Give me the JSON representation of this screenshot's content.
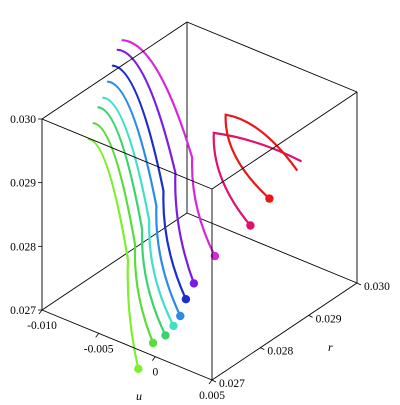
{
  "chart_data": {
    "type": "line",
    "subtype": "3d-wireframe-box",
    "axes": {
      "x": {
        "label": "u",
        "ticks": [
          "-0.010",
          "-0.005",
          "0",
          "0.005"
        ],
        "range": [
          -0.01,
          0.005
        ]
      },
      "y": {
        "label": "r",
        "ticks": [
          "0.027",
          "0.028",
          "0.029",
          "0.030"
        ],
        "range": [
          0.027,
          0.03
        ]
      },
      "z": {
        "label": "",
        "ticks": [
          "0.027",
          "0.028",
          "0.029",
          "0.030"
        ],
        "range": [
          0.027,
          0.03
        ]
      }
    },
    "grid": false,
    "legend": "none",
    "series": [
      {
        "color": "#7cf02a",
        "marker": [
          -0.0015,
          0.027,
          0.0267
        ],
        "top": [
          0.001,
          0.0262,
          0.029
        ],
        "tail_end": [
          -0.011,
          0.0282,
          0.029
        ]
      },
      {
        "color": "#5bdc3c",
        "marker": [
          -0.0002,
          0.027,
          0.0272
        ],
        "top": [
          0.0012,
          0.0263,
          0.0292
        ],
        "tail_end": [
          -0.011,
          0.0283,
          0.0292
        ]
      },
      {
        "color": "#3ad46e",
        "marker": [
          0.0009,
          0.027,
          0.0274
        ],
        "top": [
          0.0014,
          0.0264,
          0.0294
        ],
        "tail_end": [
          -0.011,
          0.0284,
          0.0294
        ]
      },
      {
        "color": "#40e0c8",
        "marker": [
          0.0016,
          0.027,
          0.0276
        ],
        "top": [
          0.0016,
          0.0265,
          0.0295
        ],
        "tail_end": [
          -0.011,
          0.0285,
          0.0295
        ]
      },
      {
        "color": "#2a8ce8",
        "marker": [
          0.0022,
          0.027,
          0.0278
        ],
        "top": [
          0.0018,
          0.0266,
          0.0297
        ],
        "tail_end": [
          -0.011,
          0.0286,
          0.0297
        ]
      },
      {
        "color": "#1b2fcf",
        "marker": [
          0.0027,
          0.027,
          0.0281
        ],
        "top": [
          0.002,
          0.0267,
          0.0299
        ],
        "tail_end": [
          -0.011,
          0.0287,
          0.0299
        ]
      },
      {
        "color": "#7a1de0",
        "marker": [
          0.0034,
          0.027,
          0.0284
        ],
        "top": [
          0.0022,
          0.0269,
          0.0301
        ],
        "tail_end": [
          -0.011,
          0.0288,
          0.0301
        ]
      },
      {
        "color": "#d628d8",
        "marker": [
          0.0044,
          0.0272,
          0.0288
        ],
        "top": [
          0.0024,
          0.0272,
          0.0302
        ],
        "tail_end": [
          -0.011,
          0.0289,
          0.0302
        ]
      },
      {
        "color": "#e0106e",
        "marker": [
          0.0054,
          0.0277,
          0.0291
        ],
        "top": [
          0.0026,
          0.0276,
          0.0304
        ],
        "tail_end": [
          0.006,
          0.0286,
          0.0297
        ]
      },
      {
        "color": "#e81818",
        "marker": [
          0.0058,
          0.028,
          0.0294
        ],
        "top": [
          0.0028,
          0.0278,
          0.0306
        ],
        "tail_end": [
          0.0065,
          0.0284,
          0.0297
        ]
      }
    ]
  }
}
